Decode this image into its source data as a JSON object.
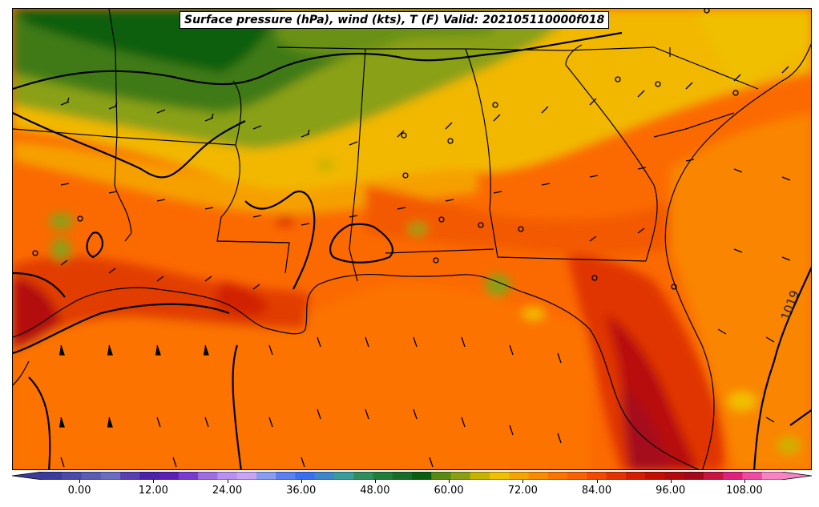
{
  "title": "Surface pressure (hPa), wind (kts), T (F) Valid: 202105110000f018",
  "isobar_label": "1019",
  "colorbar": {
    "tick_labels": [
      "0.00",
      "12.00",
      "24.00",
      "36.00",
      "48.00",
      "60.00",
      "72.00",
      "84.00",
      "96.00",
      "108.00"
    ],
    "colors": [
      "#3b3b9c",
      "#4a4aa8",
      "#5b5bb4",
      "#6b6bbf",
      "#5a3fb0",
      "#4b22a8",
      "#5d1fb5",
      "#7a3ccc",
      "#9e6ee0",
      "#b98ff0",
      "#c8a4f5",
      "#8a9cf2",
      "#5b7ef0",
      "#3a6ff0",
      "#3d86c9",
      "#3a9c9b",
      "#2e8f5c",
      "#1f7d3a",
      "#176c27",
      "#0b5e10",
      "#5a8a12",
      "#8aa012",
      "#c8b400",
      "#f0c000",
      "#f6a500",
      "#f98b00",
      "#fb7400",
      "#fb6100",
      "#f24a00",
      "#e33300",
      "#d41d00",
      "#c40f00",
      "#b30a0a",
      "#a5081a",
      "#c81440",
      "#e0207a",
      "#f04aa0",
      "#f882c2"
    ],
    "vmin": -6,
    "vmax": 114,
    "units": "F"
  },
  "map": {
    "region": "Southeastern United States and Gulf of Mexico",
    "layers": [
      "2m temperature shading",
      "sea-level pressure isobars",
      "wind barbs",
      "state borders",
      "coastlines"
    ]
  }
}
